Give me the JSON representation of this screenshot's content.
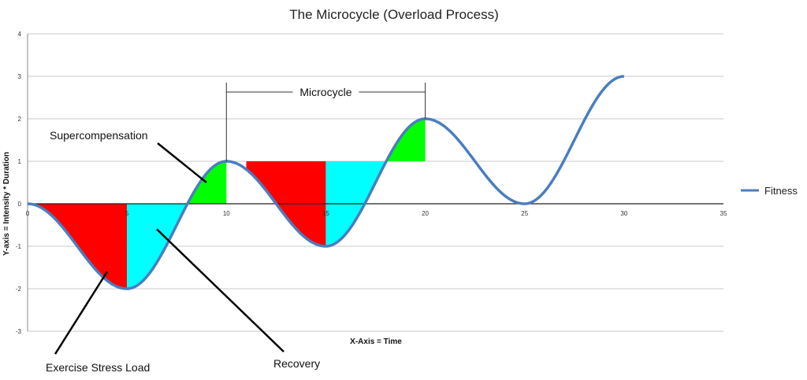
{
  "chart_data": {
    "type": "line",
    "title": "The Microcycle (Overload Process)",
    "xlabel": "X-Axis = Time",
    "ylabel": "Y-axis = Intensity * Duration",
    "xlim": [
      0,
      35
    ],
    "ylim": [
      -3,
      4
    ],
    "x_ticks": [
      0,
      5,
      10,
      15,
      20,
      25,
      30,
      35
    ],
    "y_ticks": [
      -3,
      -2,
      -1,
      0,
      1,
      2,
      3,
      4
    ],
    "grid": true,
    "legend": "right",
    "series": [
      {
        "name": "Fitness",
        "color": "#4a7ebf",
        "x": [
          0,
          5,
          10,
          15,
          20,
          25,
          30
        ],
        "y": [
          0,
          -2,
          1,
          -1,
          2,
          0,
          3
        ]
      }
    ],
    "shaded_regions": [
      {
        "x0": 0,
        "x1": 5,
        "baseline": 0,
        "color": "#ff0000"
      },
      {
        "x0": 5,
        "x1": 8,
        "baseline": 0,
        "color": "#00ffff"
      },
      {
        "x0": 8,
        "x1": 10,
        "baseline": 0,
        "color": "#00ff00"
      },
      {
        "x0": 11,
        "x1": 15,
        "baseline": 1,
        "color": "#ff0000"
      },
      {
        "x0": 15,
        "x1": 18,
        "baseline": 1,
        "color": "#00ffff"
      },
      {
        "x0": 18,
        "x1": 20,
        "baseline": 1,
        "color": "#00ff00"
      }
    ],
    "microcycle": {
      "label": "Microcycle",
      "x0": 10,
      "x1": 20
    },
    "annotations": [
      {
        "id": "supercompensation",
        "text": "Supercompensation",
        "target_x": 9,
        "target_y": 0.5
      },
      {
        "id": "exercise-stress-load",
        "text": "Exercise Stress Load",
        "target_x": 4,
        "target_y": -1.6
      },
      {
        "id": "recovery",
        "text": "Recovery",
        "target_x": 6.5,
        "target_y": -0.6
      }
    ]
  }
}
